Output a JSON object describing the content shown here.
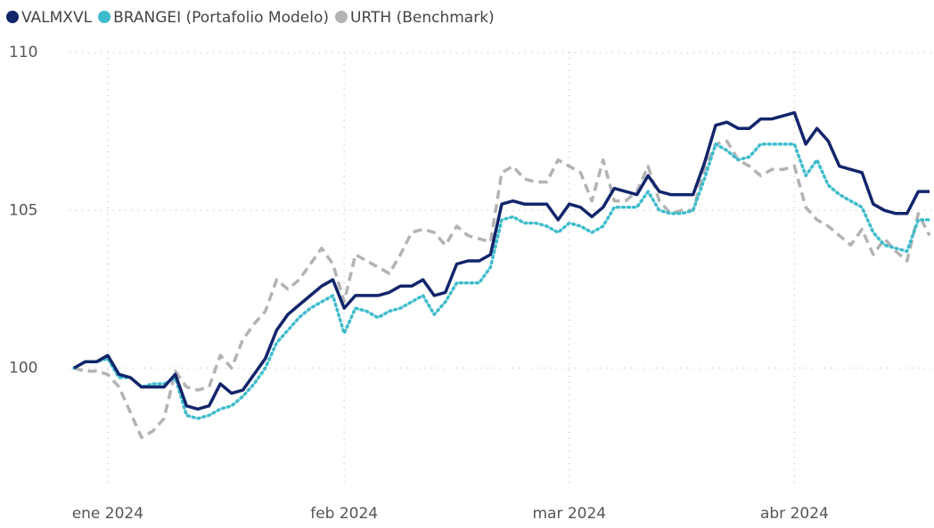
{
  "chart_data": {
    "type": "line",
    "categories": [
      null,
      null,
      null,
      "ene 2024",
      null,
      null,
      null,
      null,
      null,
      null,
      null,
      null,
      null,
      null,
      null,
      null,
      null,
      null,
      null,
      null,
      null,
      null,
      null,
      null,
      "feb 2024",
      null,
      null,
      null,
      null,
      null,
      null,
      null,
      null,
      null,
      null,
      null,
      null,
      null,
      null,
      null,
      null,
      null,
      null,
      null,
      "mar 2024",
      null,
      null,
      null,
      null,
      null,
      null,
      null,
      null,
      null,
      null,
      null,
      null,
      null,
      null,
      null,
      null,
      null,
      null,
      null,
      "abr 2024",
      null,
      null,
      null,
      null,
      null,
      null,
      null,
      null,
      null,
      null,
      null,
      null
    ],
    "series": [
      {
        "name": "VALMXVL",
        "color": "#12256b",
        "style": "solid",
        "values": [
          100.0,
          100.2,
          100.2,
          100.4,
          99.8,
          99.7,
          99.4,
          99.4,
          99.4,
          99.8,
          98.8,
          98.7,
          98.8,
          99.5,
          99.2,
          99.3,
          99.8,
          100.3,
          101.2,
          101.7,
          102.0,
          102.3,
          102.6,
          102.8,
          101.9,
          102.3,
          102.3,
          102.3,
          102.4,
          102.6,
          102.6,
          102.8,
          102.3,
          102.4,
          103.3,
          103.4,
          103.4,
          103.6,
          105.2,
          105.3,
          105.2,
          105.2,
          105.2,
          104.7,
          105.2,
          105.1,
          104.8,
          105.1,
          105.7,
          105.6,
          105.5,
          106.1,
          105.6,
          105.5,
          105.5,
          105.5,
          106.5,
          107.7,
          107.8,
          107.6,
          107.6,
          107.9,
          107.9,
          108.0,
          108.1,
          107.1,
          107.6,
          107.2,
          106.4,
          106.3,
          106.2,
          105.2,
          105.0,
          104.9,
          104.9,
          105.6,
          105.6
        ]
      },
      {
        "name": "BRANGEI (Portafolio Modelo)",
        "color": "#3fbccc",
        "style": "dotted",
        "values": [
          100.0,
          100.2,
          100.2,
          100.3,
          99.7,
          99.7,
          99.4,
          99.5,
          99.5,
          99.7,
          98.5,
          98.4,
          98.5,
          98.7,
          98.8,
          99.1,
          99.5,
          100.0,
          100.8,
          101.2,
          101.6,
          101.9,
          102.1,
          102.3,
          101.1,
          101.9,
          101.8,
          101.6,
          101.8,
          101.9,
          102.1,
          102.3,
          101.7,
          102.1,
          102.7,
          102.7,
          102.7,
          103.2,
          104.7,
          104.8,
          104.6,
          104.6,
          104.5,
          104.3,
          104.6,
          104.5,
          104.3,
          104.5,
          105.1,
          105.1,
          105.1,
          105.6,
          105.0,
          104.9,
          104.9,
          105.0,
          106.0,
          107.1,
          106.9,
          106.6,
          106.7,
          107.1,
          107.1,
          107.1,
          107.1,
          106.1,
          106.6,
          105.8,
          105.5,
          105.3,
          105.1,
          104.3,
          103.9,
          103.8,
          103.7,
          104.7,
          104.7
        ]
      },
      {
        "name": "URTH (Benchmark)",
        "color": "#b3b3b3",
        "style": "dashed",
        "values": [
          100.0,
          99.9,
          99.9,
          99.8,
          99.4,
          98.6,
          97.8,
          98.0,
          98.4,
          99.9,
          99.4,
          99.3,
          99.4,
          100.4,
          100.0,
          100.9,
          101.4,
          101.8,
          102.8,
          102.5,
          102.8,
          103.3,
          103.8,
          103.3,
          102.1,
          103.6,
          103.4,
          103.2,
          103.0,
          103.6,
          104.3,
          104.4,
          104.3,
          103.9,
          104.5,
          104.2,
          104.1,
          104.0,
          106.2,
          106.4,
          106.0,
          105.9,
          105.9,
          106.6,
          106.4,
          106.2,
          105.3,
          106.6,
          105.3,
          105.3,
          105.6,
          106.4,
          105.3,
          104.9,
          105.0,
          105.0,
          106.3,
          107.1,
          107.2,
          106.6,
          106.4,
          106.1,
          106.3,
          106.3,
          106.4,
          105.1,
          104.7,
          104.5,
          104.2,
          103.9,
          104.4,
          103.6,
          104.1,
          103.7,
          103.4,
          104.9,
          104.2
        ]
      }
    ],
    "ylim": [
      96,
      110.6
    ],
    "yticks": [
      100,
      105,
      110
    ],
    "grid": true,
    "legend": "top-left"
  }
}
